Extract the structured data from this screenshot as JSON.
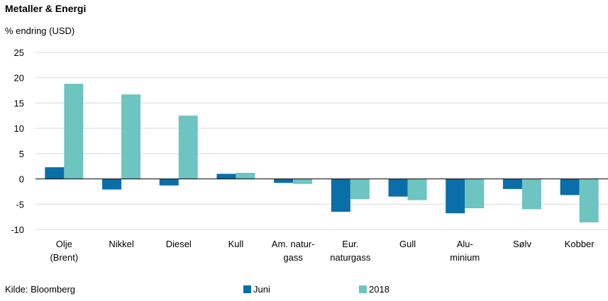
{
  "title": "Metaller & Energi",
  "subtitle": "% endring (USD)",
  "source": "Kilde: Bloomberg",
  "colors": {
    "juni": "#0a6ea8",
    "y2018": "#6dc4c1",
    "grid": "#d9d9d9",
    "axis": "#000000"
  },
  "chart_data": {
    "type": "bar",
    "title": "Metaller & Energi",
    "ylabel": "% endring (USD)",
    "ylim": [
      -10,
      25
    ],
    "yticks": [
      "25",
      "20",
      "15",
      "10",
      "5",
      "0",
      "-5",
      "-10"
    ],
    "legend_position": "bottom",
    "grid": true,
    "categories": [
      [
        "Olje",
        "(Brent)"
      ],
      [
        "Nikkel"
      ],
      [
        "Diesel"
      ],
      [
        "Kull"
      ],
      [
        "Am. natur-",
        "gass"
      ],
      [
        "Eur.",
        "naturgass"
      ],
      [
        "Gull"
      ],
      [
        "Alu-",
        "minium"
      ],
      [
        "Sølv"
      ],
      [
        "Kobber"
      ]
    ],
    "series": [
      {
        "name": "Juni",
        "values": [
          2.3,
          -2.1,
          -1.3,
          1.0,
          -0.8,
          -6.5,
          -3.5,
          -6.8,
          -2.0,
          -3.2
        ]
      },
      {
        "name": "2018",
        "values": [
          18.8,
          16.7,
          12.5,
          1.2,
          -1.0,
          -4.0,
          -4.2,
          -5.8,
          -6.0,
          -8.6
        ]
      }
    ]
  }
}
